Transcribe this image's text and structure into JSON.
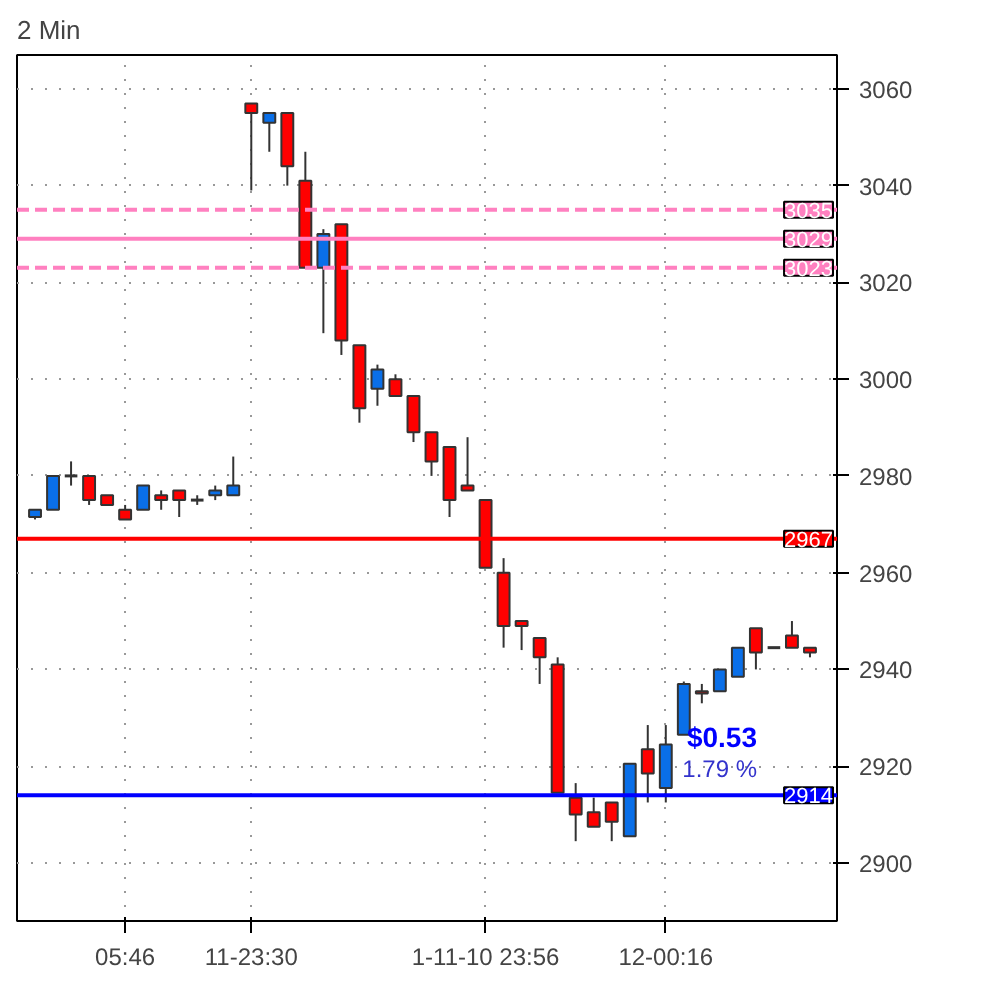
{
  "chart_data": {
    "type": "candlestick",
    "title": "2 Min",
    "categories": [
      null,
      null,
      null,
      null,
      null,
      "05:46",
      null,
      null,
      null,
      null,
      null,
      null,
      "11-23:30",
      null,
      null,
      null,
      null,
      null,
      null,
      null,
      null,
      null,
      null,
      null,
      null,
      "1-11-10 23:56",
      null,
      null,
      null,
      null,
      null,
      null,
      null,
      null,
      null,
      "12-00:16",
      null,
      null,
      null,
      null,
      null,
      null,
      null,
      null
    ],
    "ohlc": [
      [
        2971.5,
        2973,
        2971,
        2973
      ],
      [
        2973,
        2980,
        2973,
        2980
      ],
      [
        2980,
        2983,
        2978,
        2980
      ],
      [
        2980,
        2980,
        2974,
        2975
      ],
      [
        2976,
        2976,
        2974,
        2974
      ],
      [
        2973,
        2974,
        2971,
        2971
      ],
      [
        2973,
        2978,
        2973,
        2978
      ],
      [
        2976,
        2977,
        2973,
        2975
      ],
      [
        2977,
        2977,
        2971.5,
        2975
      ],
      [
        2975,
        2976,
        2974,
        2975
      ],
      [
        2976,
        2978,
        2975,
        2977
      ],
      [
        2976,
        2984,
        2976,
        2978
      ],
      [
        3057,
        3057,
        3039,
        3055
      ],
      [
        3053,
        3055,
        3047,
        3055
      ],
      [
        3055,
        3055,
        3040,
        3044
      ],
      [
        3041,
        3047,
        3023,
        3023
      ],
      [
        3023,
        3031,
        3009.5,
        3030
      ],
      [
        3032,
        3032,
        3005,
        3008
      ],
      [
        3007,
        3007,
        2991,
        2994
      ],
      [
        2998,
        3003,
        2994.5,
        3002
      ],
      [
        3000,
        3001,
        2996.5,
        2996.5
      ],
      [
        2996.5,
        2996.5,
        2987,
        2989
      ],
      [
        2989,
        2989,
        2980,
        2983
      ],
      [
        2986,
        2986,
        2971.5,
        2975
      ],
      [
        2978,
        2988,
        2977,
        2977
      ],
      [
        2975,
        2975,
        2961,
        2961
      ],
      [
        2960,
        2963,
        2944.5,
        2949
      ],
      [
        2950,
        2950,
        2944,
        2949
      ],
      [
        2946.5,
        2946.5,
        2937,
        2942.5
      ],
      [
        2941,
        2942.5,
        2914.5,
        2914.5
      ],
      [
        2913.5,
        2916.5,
        2904.5,
        2910
      ],
      [
        2910.5,
        2913.5,
        2907.5,
        2907.5
      ],
      [
        2912.5,
        2912.5,
        2904.5,
        2908.5
      ],
      [
        2905.5,
        2920.5,
        2905.5,
        2920.5
      ],
      [
        2923.5,
        2928.5,
        2912.5,
        2918.5
      ],
      [
        2915.5,
        2928.5,
        2912.5,
        2924.5
      ],
      [
        2926.5,
        2937.5,
        2926.5,
        2937
      ],
      [
        2935,
        2937,
        2933,
        2935.5
      ],
      [
        2935.5,
        2940,
        2935.5,
        2940
      ],
      [
        2938.5,
        2944.5,
        2938.5,
        2944.5
      ],
      [
        2948.5,
        2948.5,
        2940,
        2943.5
      ],
      [
        2944.5,
        2944.5,
        2944.5,
        2944.5
      ],
      [
        2947,
        2950,
        2944.5,
        2944.5
      ],
      [
        2944.5,
        2944.5,
        2942.5,
        2943.5
      ]
    ],
    "colors": [
      "#0a6fe8",
      "#0a6fe8",
      "#333333",
      "#ff0000",
      "#ff0000",
      "#ff0000",
      "#0a6fe8",
      "#ff0000",
      "#ff0000",
      "#333333",
      "#0a6fe8",
      "#0a6fe8",
      "#ff0000",
      "#0a6fe8",
      "#ff0000",
      "#ff0000",
      "#0a6fe8",
      "#ff0000",
      "#ff0000",
      "#0a6fe8",
      "#ff0000",
      "#ff0000",
      "#ff0000",
      "#ff0000",
      "#ff0000",
      "#ff0000",
      "#ff0000",
      "#ff0000",
      "#ff0000",
      "#ff0000",
      "#ff0000",
      "#ff0000",
      "#ff0000",
      "#0a6fe8",
      "#ff0000",
      "#0a6fe8",
      "#0a6fe8",
      "#ff0000",
      "#0a6fe8",
      "#0a6fe8",
      "#ff0000",
      "#333333",
      "#ff0000",
      "#ff0000"
    ],
    "ylim": [
      2888,
      3067
    ],
    "yticks": [
      2900,
      2920,
      2940,
      2960,
      2980,
      3000,
      3020,
      3040,
      3060
    ],
    "grid": true,
    "ref_lines": [
      {
        "axis": "y",
        "value": 3035,
        "label": "3035",
        "color": "#ff80c0",
        "line_style": "dashed"
      },
      {
        "axis": "y",
        "value": 3029,
        "label": "3029",
        "color": "#ff80c0",
        "line_style": "solid"
      },
      {
        "axis": "y",
        "value": 3023,
        "label": "3023",
        "color": "#ff80c0",
        "line_style": "dashed"
      },
      {
        "axis": "y",
        "value": 2967,
        "label": "2967",
        "color": "#ff0000",
        "line_style": "solid"
      },
      {
        "axis": "y",
        "value": 2914,
        "label": "2914",
        "color": "#0000ff",
        "line_style": "solid"
      }
    ],
    "annotations": [
      "$0.53",
      "1.79 %"
    ]
  }
}
